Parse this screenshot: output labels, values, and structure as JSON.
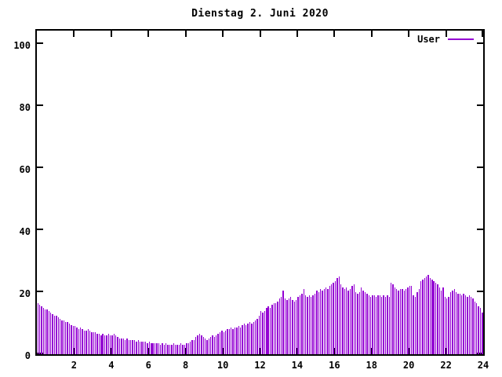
{
  "page": {
    "background_color": "#ffffff",
    "text_color": "#000000"
  },
  "chart_data": {
    "type": "bar",
    "title": "Dienstag 2. Juni 2020",
    "xlabel": "",
    "ylabel": "",
    "grid": false,
    "legend_position": "top-right-inside",
    "x": {
      "unit": "hour-of-day",
      "start": 0,
      "end": 24,
      "interval_minutes": 6,
      "tick_labels": [
        2,
        4,
        6,
        8,
        10,
        12,
        14,
        16,
        18,
        20,
        22,
        24
      ]
    },
    "y": {
      "min": 0,
      "max_visible": 105.3,
      "tick_labels": [
        0,
        20,
        40,
        60,
        80,
        100
      ]
    },
    "series": [
      {
        "name": "User",
        "color": "#9400D3",
        "values": [
          16.5,
          16,
          15.5,
          15,
          14.5,
          14.5,
          14,
          13.5,
          13,
          12.5,
          12.5,
          12,
          11.5,
          11,
          11,
          10.5,
          10.5,
          10,
          9.5,
          9,
          9,
          8.5,
          8,
          8.5,
          8,
          7.5,
          7.5,
          8,
          7.5,
          7,
          7,
          7,
          6.5,
          6.5,
          6,
          6.5,
          6,
          6,
          6.5,
          6,
          6,
          6.5,
          6,
          5.5,
          5,
          5,
          5,
          4.5,
          5,
          4.5,
          4.5,
          4.5,
          4.5,
          4,
          4.5,
          4,
          4,
          4,
          4,
          3.5,
          4,
          3.5,
          3.5,
          3.5,
          3.5,
          3.5,
          3,
          3.5,
          3,
          3.5,
          3,
          3,
          3,
          3.5,
          3,
          3,
          3,
          3.5,
          3,
          3,
          3.5,
          3.5,
          4,
          4.5,
          4.5,
          5.5,
          6,
          6.5,
          6,
          5.5,
          5,
          4.5,
          5,
          5.5,
          6,
          5.5,
          6,
          6.5,
          7,
          7.5,
          7,
          7.5,
          8,
          8,
          8.5,
          8,
          8.5,
          8.5,
          9,
          8.5,
          9.5,
          10,
          9.5,
          10,
          10.5,
          10,
          10.5,
          11,
          11.5,
          12.5,
          14,
          13.5,
          14,
          15,
          15.5,
          15,
          16,
          16.5,
          16.5,
          17,
          18,
          18.5,
          20.5,
          18,
          17.5,
          18,
          18.5,
          17.5,
          17,
          17.5,
          18.5,
          19,
          19.5,
          21,
          19,
          18.5,
          19,
          18.5,
          19,
          19.5,
          20.5,
          20,
          21,
          20.5,
          21,
          21.5,
          21,
          22,
          22.5,
          23,
          23.5,
          24.5,
          25,
          22.5,
          21.5,
          21,
          21.5,
          20.5,
          21,
          22,
          22.5,
          20,
          19.5,
          20,
          21.5,
          20.5,
          20,
          19.5,
          19,
          18.5,
          19,
          19,
          18.5,
          19,
          19,
          18.5,
          19,
          18.5,
          19,
          18.5,
          23,
          22.5,
          21.5,
          21,
          20.5,
          21,
          21,
          20.5,
          21,
          21.5,
          22,
          22,
          19,
          18.5,
          20,
          21,
          23.5,
          24,
          24.5,
          25,
          25.5,
          24.5,
          24,
          23.5,
          23,
          22.5,
          21.5,
          20.5,
          21.5,
          18.5,
          18,
          18.5,
          20,
          20.5,
          21,
          20,
          19.5,
          19.5,
          19,
          19.5,
          19,
          18.5,
          19,
          18.5,
          18,
          17,
          16.5,
          15.5,
          15,
          13.5
        ]
      }
    ]
  }
}
